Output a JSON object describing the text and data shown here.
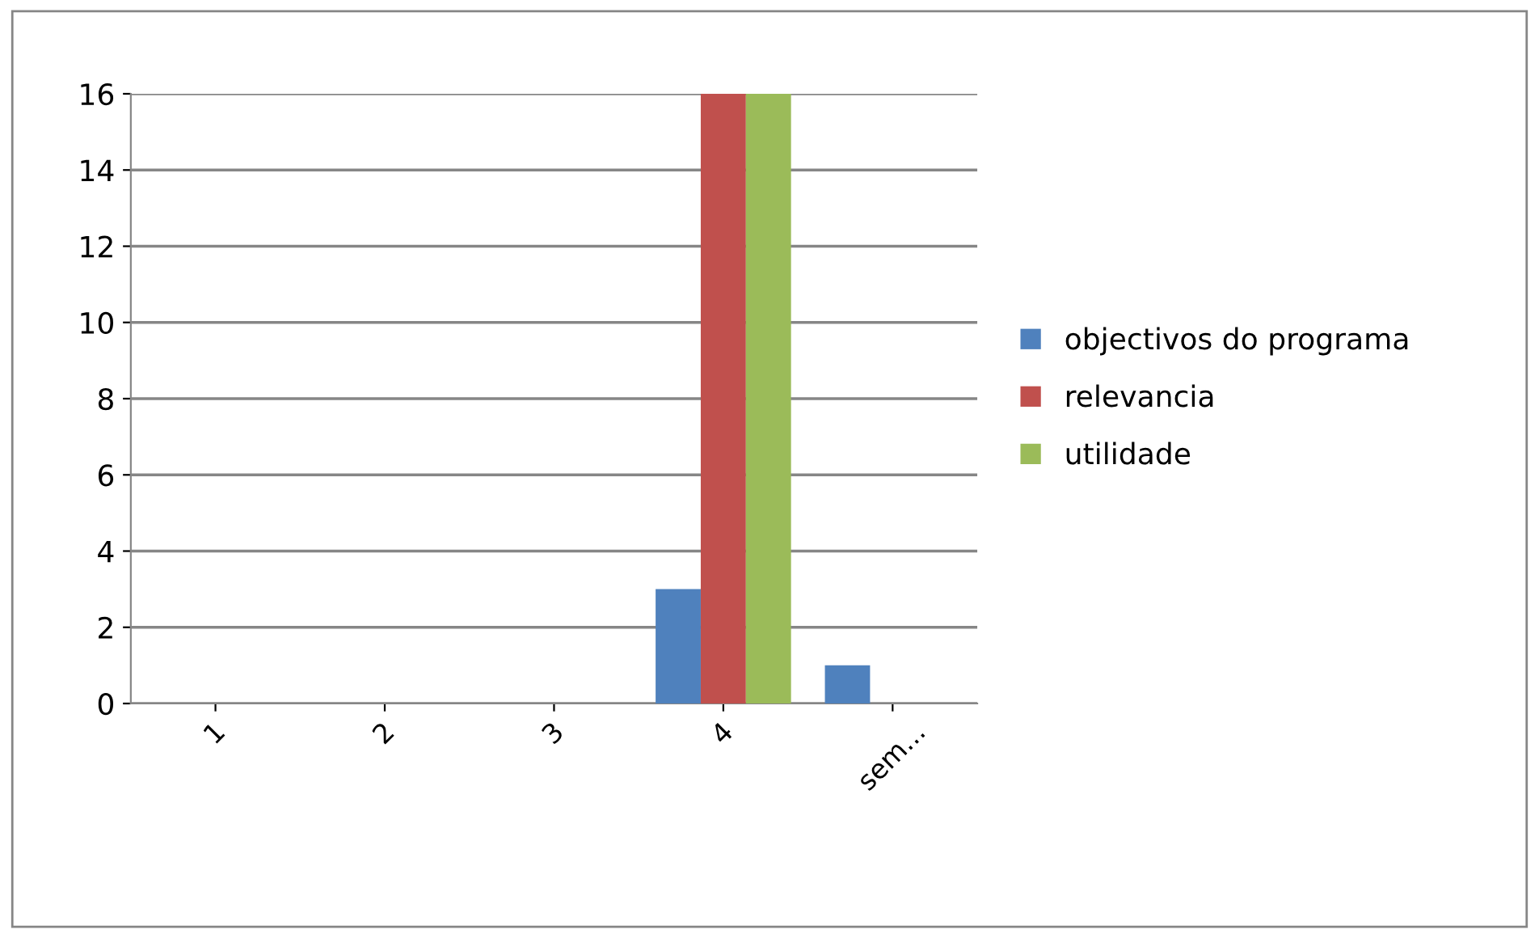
{
  "chart_data": {
    "type": "bar",
    "categories": [
      "1",
      "2",
      "3",
      "4",
      "sem..."
    ],
    "series": [
      {
        "name": "objectivos do programa",
        "color": "#4f81bd",
        "values": [
          0,
          0,
          0,
          3,
          1
        ]
      },
      {
        "name": "relevancia",
        "color": "#c0504d",
        "values": [
          0,
          0,
          0,
          16,
          0
        ]
      },
      {
        "name": "utilidade",
        "color": "#9bbb59",
        "values": [
          0,
          0,
          0,
          16,
          0
        ]
      }
    ],
    "ylim": [
      0,
      16
    ],
    "yticks": [
      0,
      2,
      4,
      6,
      8,
      10,
      12,
      14,
      16
    ],
    "grid": "y",
    "legend": "right"
  }
}
